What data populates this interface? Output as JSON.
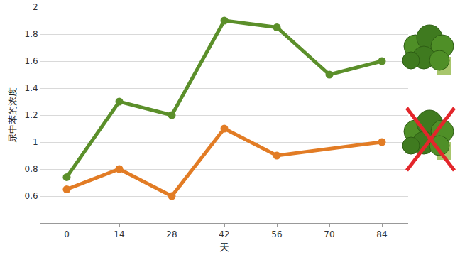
{
  "chart_data": {
    "type": "line",
    "x_label": "天",
    "y_label": "尿中苯的浓度",
    "series": [
      {
        "color": "#5b8f2a",
        "marker": "circle",
        "x": [
          0,
          14,
          28,
          42,
          56,
          70,
          84
        ],
        "values": [
          0.74,
          1.3,
          1.2,
          1.9,
          1.85,
          1.5,
          1.6
        ]
      },
      {
        "color": "#e27c25",
        "marker": "circle",
        "x": [
          0,
          14,
          28,
          42,
          56,
          84
        ],
        "values": [
          0.65,
          0.8,
          0.6,
          1.1,
          0.9,
          1.0
        ]
      }
    ],
    "xlim": [
      -7,
      91
    ],
    "xticks": [
      0,
      14,
      28,
      42,
      56,
      70,
      84
    ],
    "ylim": [
      0.4,
      2
    ],
    "yticks": [
      0.6,
      0.8,
      1,
      1.2,
      1.4,
      1.6,
      1.8,
      2
    ],
    "grid": true
  }
}
